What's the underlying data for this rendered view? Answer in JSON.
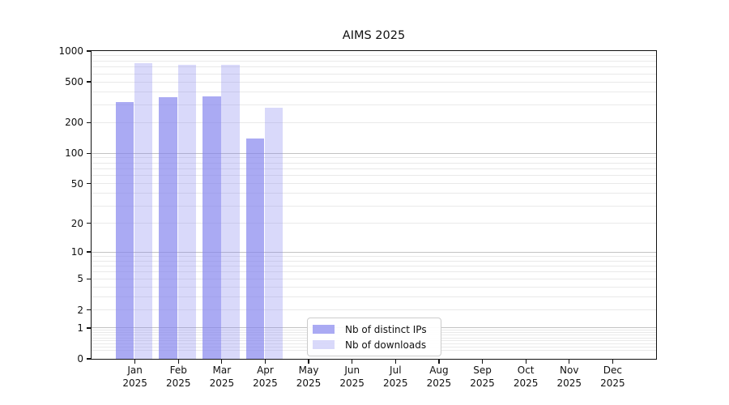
{
  "chart_data": {
    "type": "bar",
    "title": "AIMS 2025",
    "categories": [
      {
        "line1": "Jan",
        "line2": "2025"
      },
      {
        "line1": "Feb",
        "line2": "2025"
      },
      {
        "line1": "Mar",
        "line2": "2025"
      },
      {
        "line1": "Apr",
        "line2": "2025"
      },
      {
        "line1": "May",
        "line2": "2025"
      },
      {
        "line1": "Jun",
        "line2": "2025"
      },
      {
        "line1": "Jul",
        "line2": "2025"
      },
      {
        "line1": "Aug",
        "line2": "2025"
      },
      {
        "line1": "Sep",
        "line2": "2025"
      },
      {
        "line1": "Oct",
        "line2": "2025"
      },
      {
        "line1": "Nov",
        "line2": "2025"
      },
      {
        "line1": "Dec",
        "line2": "2025"
      }
    ],
    "series": [
      {
        "name": "Nb of distinct IPs",
        "color": "rgba(132,132,238,0.69)",
        "values": [
          320,
          355,
          360,
          140,
          null,
          null,
          null,
          null,
          null,
          null,
          null,
          null
        ]
      },
      {
        "name": "Nb of downloads",
        "color": "rgba(132,132,238,0.31)",
        "values": [
          765,
          735,
          730,
          280,
          null,
          null,
          null,
          null,
          null,
          null,
          null,
          null
        ]
      }
    ],
    "y_axis": {
      "scale": "symlog",
      "tick_values": [
        0,
        1,
        2,
        5,
        10,
        20,
        50,
        100,
        200,
        500,
        1000
      ],
      "tick_labels": [
        "0",
        "1",
        "2",
        "5",
        "10",
        "20",
        "50",
        "100",
        "200",
        "500",
        "1000"
      ],
      "ylim": [
        0,
        1000
      ]
    },
    "grid": {
      "horizontal": true,
      "major_values": [
        1,
        10,
        100
      ],
      "minor": true
    },
    "legend": {
      "position": "inside-bottom-center"
    }
  },
  "colors": {
    "background": "#ffffff",
    "bar_primary_on_white": "#aaaaf3",
    "bar_secondary_on_white": "#d9d9fa",
    "grid_major": "#c3c3c3",
    "grid_minor": "#e9e9e9",
    "axis": "#111111",
    "text": "#111111",
    "legend_border": "#cccccc"
  }
}
